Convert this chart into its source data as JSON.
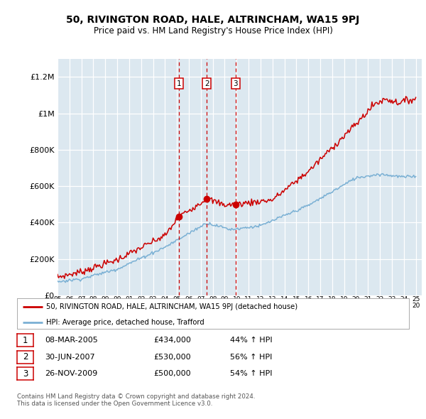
{
  "title": "50, RIVINGTON ROAD, HALE, ALTRINCHAM, WA15 9PJ",
  "subtitle": "Price paid vs. HM Land Registry's House Price Index (HPI)",
  "plot_bg_color": "#dce8f0",
  "ylim": [
    0,
    1300000
  ],
  "yticks": [
    0,
    200000,
    400000,
    600000,
    800000,
    1000000,
    1200000
  ],
  "ytick_labels": [
    "£0",
    "£200K",
    "£400K",
    "£600K",
    "£800K",
    "£1M",
    "£1.2M"
  ],
  "red_line_color": "#cc0000",
  "blue_line_color": "#7ab0d4",
  "transactions": [
    {
      "num": 1,
      "date": "08-MAR-2005",
      "price": 434000,
      "year": 2005.19,
      "pct": "44%",
      "dir": "↑"
    },
    {
      "num": 2,
      "date": "30-JUN-2007",
      "price": 530000,
      "year": 2007.49,
      "pct": "56%",
      "dir": "↑"
    },
    {
      "num": 3,
      "date": "26-NOV-2009",
      "price": 500000,
      "year": 2009.9,
      "pct": "54%",
      "dir": "↑"
    }
  ],
  "legend_red_label": "50, RIVINGTON ROAD, HALE, ALTRINCHAM, WA15 9PJ (detached house)",
  "legend_blue_label": "HPI: Average price, detached house, Trafford",
  "footer1": "Contains HM Land Registry data © Crown copyright and database right 2024.",
  "footer2": "This data is licensed under the Open Government Licence v3.0."
}
